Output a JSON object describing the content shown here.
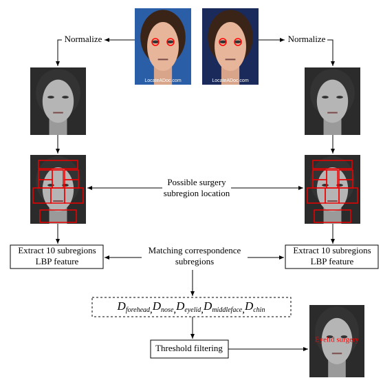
{
  "photos": [
    {
      "watermark": "LocateADoc.com"
    },
    {
      "watermark": "LocateADoc.com"
    }
  ],
  "normalize_left": "Normalize",
  "normalize_right": "Normalize",
  "subregion_location": [
    "Possible surgery",
    "subregion location"
  ],
  "extract_left": [
    "Extract 10 subregions",
    "LBP feature"
  ],
  "extract_right": [
    "Extract 10 subregions",
    "LBP feature"
  ],
  "matching": [
    "Matching correspondence",
    "subregions"
  ],
  "formula": {
    "symbol": "D",
    "separator": ",",
    "subscripts": [
      "forehead",
      "nose",
      "eyelid",
      "middleface",
      "chin"
    ]
  },
  "threshold": "Threshold filtering",
  "result": "Eyelid surgery"
}
